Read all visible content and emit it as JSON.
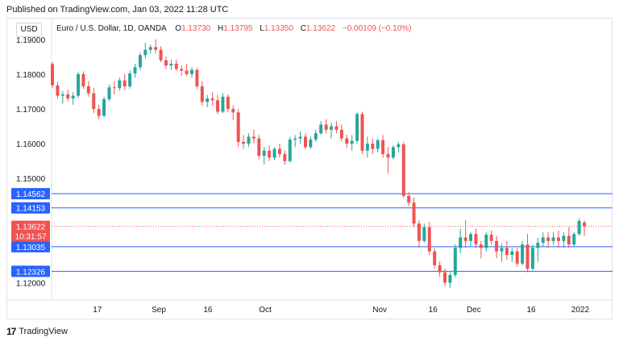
{
  "header": {
    "published": "Published on TradingView.com, Jan 03, 2022 11:28 UTC"
  },
  "currency_badge": "USD",
  "legend": {
    "title": "Euro / U.S. Dollar, 1D, OANDA",
    "open_label": "O",
    "open": "1.13730",
    "high_label": "H",
    "high": "1.13795",
    "low_label": "L",
    "low": "1.13350",
    "close_label": "C",
    "close": "1.13622",
    "change": "−0.00109 (−0.10%)"
  },
  "footer": {
    "logo_glyph": "17",
    "brand": "TradingView"
  },
  "colors": {
    "up": "#26a69a",
    "down": "#ef5350",
    "hline": "#2962ff",
    "badge": "#2962ff",
    "grid": "#f0f3fa"
  },
  "chart_data": {
    "type": "candlestick",
    "symbol": "EURUSD",
    "interval": "1D",
    "ylim": [
      1.115,
      1.196
    ],
    "y_ticks": [
      "1.19000",
      "1.18000",
      "1.17000",
      "1.16000",
      "1.15000",
      "1.12000"
    ],
    "x_ticks": [
      "17",
      "Sep",
      "16",
      "Oct",
      "Nov",
      "16",
      "Dec",
      "16",
      "2022"
    ],
    "horizontal_lines": [
      {
        "label": "1.14562",
        "value": 1.14562
      },
      {
        "label": "1.14153",
        "value": 1.14153
      },
      {
        "label": "1.13035",
        "value": 1.13035
      },
      {
        "label": "1.12326",
        "value": 1.12326
      }
    ],
    "last_price": {
      "label": "1.13622",
      "value": 1.13622,
      "countdown": "10:31:57"
    },
    "candles": [
      [
        1.1829,
        1.1835,
        1.176,
        1.1768
      ],
      [
        1.1768,
        1.1778,
        1.173,
        1.1738
      ],
      [
        1.1738,
        1.1752,
        1.1715,
        1.1742
      ],
      [
        1.1742,
        1.1755,
        1.1722,
        1.173
      ],
      [
        1.173,
        1.1748,
        1.1712,
        1.1738
      ],
      [
        1.1738,
        1.1806,
        1.1732,
        1.18
      ],
      [
        1.18,
        1.1808,
        1.1758,
        1.1765
      ],
      [
        1.1765,
        1.178,
        1.1735,
        1.1745
      ],
      [
        1.1745,
        1.176,
        1.1688,
        1.17
      ],
      [
        1.17,
        1.1712,
        1.167,
        1.168
      ],
      [
        1.168,
        1.1735,
        1.1676,
        1.1728
      ],
      [
        1.1728,
        1.177,
        1.1722,
        1.1762
      ],
      [
        1.1762,
        1.1779,
        1.1742,
        1.176
      ],
      [
        1.176,
        1.179,
        1.1752,
        1.1782
      ],
      [
        1.1782,
        1.18,
        1.1755,
        1.1765
      ],
      [
        1.1765,
        1.181,
        1.1758,
        1.1802
      ],
      [
        1.1802,
        1.183,
        1.179,
        1.182
      ],
      [
        1.182,
        1.1862,
        1.1812,
        1.1855
      ],
      [
        1.1855,
        1.189,
        1.1845,
        1.187
      ],
      [
        1.187,
        1.1885,
        1.186,
        1.1878
      ],
      [
        1.1878,
        1.19,
        1.186,
        1.187
      ],
      [
        1.187,
        1.188,
        1.1835,
        1.184
      ],
      [
        1.184,
        1.185,
        1.1815,
        1.1825
      ],
      [
        1.1825,
        1.1842,
        1.1812,
        1.183
      ],
      [
        1.183,
        1.1842,
        1.181,
        1.1815
      ],
      [
        1.1815,
        1.1825,
        1.1795,
        1.181
      ],
      [
        1.181,
        1.183,
        1.1795,
        1.18
      ],
      [
        1.18,
        1.182,
        1.179,
        1.1812
      ],
      [
        1.1812,
        1.1818,
        1.1758,
        1.1765
      ],
      [
        1.1765,
        1.178,
        1.171,
        1.172
      ],
      [
        1.172,
        1.174,
        1.1705,
        1.173
      ],
      [
        1.173,
        1.1748,
        1.171,
        1.1725
      ],
      [
        1.1725,
        1.174,
        1.1685,
        1.1692
      ],
      [
        1.1692,
        1.1745,
        1.1688,
        1.1735
      ],
      [
        1.1735,
        1.1742,
        1.169,
        1.17
      ],
      [
        1.17,
        1.171,
        1.1668,
        1.169
      ],
      [
        1.169,
        1.17,
        1.159,
        1.1605
      ],
      [
        1.1605,
        1.1625,
        1.1585,
        1.16
      ],
      [
        1.16,
        1.163,
        1.159,
        1.162
      ],
      [
        1.162,
        1.164,
        1.16,
        1.1615
      ],
      [
        1.1615,
        1.1625,
        1.1555,
        1.1565
      ],
      [
        1.1565,
        1.159,
        1.154,
        1.158
      ],
      [
        1.158,
        1.1595,
        1.155,
        1.156
      ],
      [
        1.156,
        1.159,
        1.1552,
        1.1585
      ],
      [
        1.1585,
        1.16,
        1.156,
        1.157
      ],
      [
        1.157,
        1.158,
        1.154,
        1.155
      ],
      [
        1.155,
        1.162,
        1.1545,
        1.1612
      ],
      [
        1.1612,
        1.1625,
        1.159,
        1.1615
      ],
      [
        1.1615,
        1.1635,
        1.16,
        1.162
      ],
      [
        1.162,
        1.163,
        1.1585,
        1.159
      ],
      [
        1.159,
        1.162,
        1.1585,
        1.1612
      ],
      [
        1.1612,
        1.164,
        1.1605,
        1.163
      ],
      [
        1.163,
        1.1665,
        1.1625,
        1.1655
      ],
      [
        1.1655,
        1.167,
        1.163,
        1.164
      ],
      [
        1.164,
        1.166,
        1.1615,
        1.165
      ],
      [
        1.165,
        1.1665,
        1.163,
        1.164
      ],
      [
        1.164,
        1.1655,
        1.1605,
        1.1615
      ],
      [
        1.1615,
        1.1625,
        1.1588,
        1.16
      ],
      [
        1.16,
        1.1625,
        1.158,
        1.1608
      ],
      [
        1.1608,
        1.169,
        1.16,
        1.1685
      ],
      [
        1.1685,
        1.1692,
        1.157,
        1.158
      ],
      [
        1.158,
        1.162,
        1.156,
        1.16
      ],
      [
        1.16,
        1.1615,
        1.157,
        1.1585
      ],
      [
        1.1585,
        1.1615,
        1.1575,
        1.161
      ],
      [
        1.161,
        1.1625,
        1.156,
        1.157
      ],
      [
        1.157,
        1.159,
        1.1515,
        1.156
      ],
      [
        1.156,
        1.1595,
        1.1555,
        1.159
      ],
      [
        1.159,
        1.1605,
        1.1575,
        1.1598
      ],
      [
        1.1598,
        1.1605,
        1.1445,
        1.145
      ],
      [
        1.145,
        1.146,
        1.142,
        1.143
      ],
      [
        1.143,
        1.1445,
        1.136,
        1.137
      ],
      [
        1.137,
        1.138,
        1.13,
        1.132
      ],
      [
        1.132,
        1.137,
        1.1315,
        1.136
      ],
      [
        1.136,
        1.1375,
        1.128,
        1.129
      ],
      [
        1.129,
        1.13,
        1.124,
        1.125
      ],
      [
        1.125,
        1.1262,
        1.1218,
        1.123
      ],
      [
        1.123,
        1.124,
        1.119,
        1.12
      ],
      [
        1.12,
        1.123,
        1.1185,
        1.1222
      ],
      [
        1.1222,
        1.131,
        1.1215,
        1.13
      ],
      [
        1.13,
        1.1355,
        1.1285,
        1.133
      ],
      [
        1.133,
        1.138,
        1.13,
        1.132
      ],
      [
        1.132,
        1.1345,
        1.1305,
        1.134
      ],
      [
        1.134,
        1.1355,
        1.13,
        1.131
      ],
      [
        1.131,
        1.132,
        1.127,
        1.13
      ],
      [
        1.13,
        1.1345,
        1.129,
        1.1338
      ],
      [
        1.1338,
        1.135,
        1.131,
        1.132
      ],
      [
        1.132,
        1.1335,
        1.127,
        1.129
      ],
      [
        1.129,
        1.1312,
        1.126,
        1.13
      ],
      [
        1.13,
        1.132,
        1.1265,
        1.128
      ],
      [
        1.128,
        1.13,
        1.126,
        1.129
      ],
      [
        1.129,
        1.13,
        1.1245,
        1.1255
      ],
      [
        1.1255,
        1.132,
        1.125,
        1.131
      ],
      [
        1.131,
        1.134,
        1.123,
        1.124
      ],
      [
        1.124,
        1.131,
        1.1235,
        1.13
      ],
      [
        1.13,
        1.133,
        1.126,
        1.1315
      ],
      [
        1.1315,
        1.1345,
        1.1305,
        1.133
      ],
      [
        1.133,
        1.1345,
        1.13,
        1.132
      ],
      [
        1.132,
        1.1345,
        1.131,
        1.133
      ],
      [
        1.133,
        1.135,
        1.13,
        1.132
      ],
      [
        1.132,
        1.1345,
        1.13,
        1.1335
      ],
      [
        1.1335,
        1.136,
        1.13,
        1.131
      ],
      [
        1.131,
        1.1345,
        1.1305,
        1.134
      ],
      [
        1.134,
        1.1385,
        1.1335,
        1.1378
      ],
      [
        1.1373,
        1.13795,
        1.1335,
        1.13622
      ]
    ]
  }
}
